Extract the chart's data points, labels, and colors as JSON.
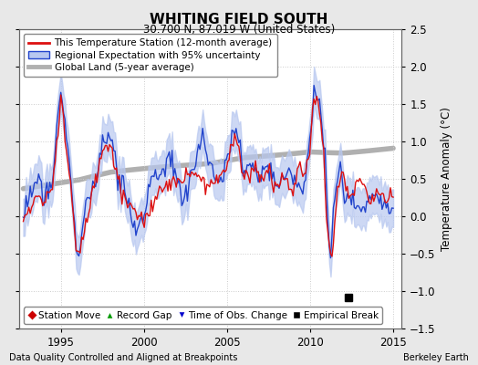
{
  "title": "WHITING FIELD SOUTH",
  "subtitle": "30.700 N, 87.019 W (United States)",
  "ylabel": "Temperature Anomaly (°C)",
  "xlabel_left": "Data Quality Controlled and Aligned at Breakpoints",
  "xlabel_right": "Berkeley Earth",
  "ylim": [
    -1.5,
    2.5
  ],
  "xlim": [
    1992.5,
    2015.5
  ],
  "yticks": [
    -1.5,
    -1.0,
    -0.5,
    0.0,
    0.5,
    1.0,
    1.5,
    2.0,
    2.5
  ],
  "xticks": [
    1995,
    2000,
    2005,
    2010,
    2015
  ],
  "background_color": "#e8e8e8",
  "plot_bg_color": "#ffffff",
  "grid_color": "#cccccc",
  "empirical_break_x": 2012.3,
  "empirical_break_y": -1.08,
  "legend_labels": [
    "This Temperature Station (12-month average)",
    "Regional Expectation with 95% uncertainty",
    "Global Land (5-year average)"
  ],
  "legend_marker_labels": [
    "Station Move",
    "Record Gap",
    "Time of Obs. Change",
    "Empirical Break"
  ]
}
